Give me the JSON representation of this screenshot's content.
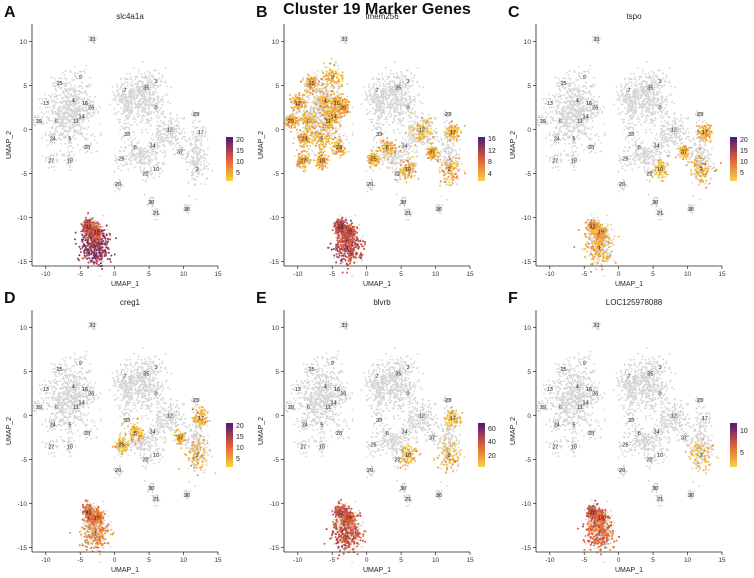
{
  "figure_title": "Cluster 19 Marker Genes",
  "colors": {
    "background_cells": "#d4d4d4",
    "low": "#f6d340",
    "mid": "#e05a3a",
    "high": "#4a1a7a"
  },
  "chart_data": [
    {
      "type": "scatter",
      "panel": "A",
      "title": "slc4a1a",
      "xlabel": "UMAP_1",
      "ylabel": "UMAP_2",
      "xlim": [
        -12,
        15
      ],
      "ylim": [
        -15.5,
        12
      ],
      "x_ticks": [
        -10,
        -5,
        0,
        5,
        10,
        15
      ],
      "y_ticks": [
        10,
        5,
        0,
        -5,
        -10,
        -15
      ],
      "legend_ticks": [
        20,
        15,
        10,
        5
      ],
      "legend_max": 22,
      "legend_min": 2,
      "expression": {
        "1": 0.75,
        "32": 0.6,
        "19": 0.55
      },
      "cluster_labels": [
        "31",
        "15",
        "9",
        "13",
        "4",
        "16",
        "26",
        "29",
        "6",
        "11",
        "14",
        "24",
        "5",
        "28",
        "27",
        "18",
        "7",
        "35",
        "3",
        "0",
        "12",
        "23",
        "33",
        "8",
        "34",
        "25",
        "22",
        "10",
        "17",
        "37",
        "2",
        "20",
        "30",
        "21",
        "36",
        "32",
        "19",
        "1"
      ]
    },
    {
      "type": "scatter",
      "panel": "B",
      "title": "tmem256",
      "xlabel": "UMAP_1",
      "ylabel": "UMAP_2",
      "xlim": [
        -12,
        15
      ],
      "ylim": [
        -15.5,
        12
      ],
      "x_ticks": [
        -10,
        -5,
        0,
        5,
        10,
        15
      ],
      "y_ticks": [
        10,
        5,
        0,
        -5,
        -10,
        -15
      ],
      "legend_ticks": [
        16,
        12,
        8,
        4
      ],
      "legend_max": 17,
      "legend_min": 2,
      "expression": {
        "1": 0.6,
        "32": 0.6,
        "19": 0.55,
        "9": 0.15,
        "15": 0.15,
        "13": 0.15,
        "4": 0.15,
        "16": 0.15,
        "26": 0.15,
        "29": 0.15,
        "6": 0.15,
        "11": 0.15,
        "14": 0.15,
        "24": 0.15,
        "5": 0.15,
        "28": 0.15,
        "27": 0.15,
        "18": 0.15,
        "25": 0.15,
        "8": 0.15,
        "10": 0.15,
        "2": 0.15,
        "17": 0.15,
        "37": 0.15,
        "12": 0.12
      },
      "cluster_labels": [
        "31",
        "15",
        "9",
        "13",
        "4",
        "16",
        "26",
        "29",
        "6",
        "11",
        "14",
        "24",
        "5",
        "28",
        "27",
        "18",
        "7",
        "35",
        "3",
        "0",
        "12",
        "23",
        "33",
        "8",
        "34",
        "25",
        "22",
        "10",
        "17",
        "37",
        "2",
        "20",
        "30",
        "21",
        "36",
        "32",
        "19",
        "1"
      ]
    },
    {
      "type": "scatter",
      "panel": "C",
      "title": "tspo",
      "xlabel": "UMAP_1",
      "ylabel": "UMAP_2",
      "xlim": [
        -12,
        15
      ],
      "ylim": [
        -15.5,
        12
      ],
      "x_ticks": [
        -10,
        -5,
        0,
        5,
        10,
        15
      ],
      "y_ticks": [
        10,
        5,
        0,
        -5,
        -10,
        -15
      ],
      "legend_ticks": [
        20,
        15,
        10,
        5
      ],
      "legend_max": 22,
      "legend_min": 2,
      "expression": {
        "1": 0.2,
        "32": 0.2,
        "19": 0.2,
        "2": 0.15,
        "17": 0.15,
        "37": 0.12,
        "10": 0.1
      },
      "cluster_labels": [
        "31",
        "15",
        "9",
        "13",
        "4",
        "16",
        "26",
        "29",
        "6",
        "11",
        "14",
        "24",
        "5",
        "28",
        "27",
        "18",
        "7",
        "35",
        "3",
        "0",
        "12",
        "23",
        "33",
        "8",
        "34",
        "25",
        "22",
        "10",
        "17",
        "37",
        "2",
        "20",
        "30",
        "21",
        "36",
        "32",
        "19",
        "1"
      ]
    },
    {
      "type": "scatter",
      "panel": "D",
      "title": "creg1",
      "xlabel": "UMAP_1",
      "ylabel": "UMAP_2",
      "xlim": [
        -12,
        15
      ],
      "ylim": [
        -15.5,
        12
      ],
      "x_ticks": [
        -10,
        -5,
        0,
        5,
        10,
        15
      ],
      "y_ticks": [
        10,
        5,
        0,
        -5,
        -10,
        -15
      ],
      "legend_ticks": [
        20,
        15,
        10,
        5
      ],
      "legend_max": 22,
      "legend_min": 2,
      "expression": {
        "1": 0.3,
        "32": 0.4,
        "19": 0.35,
        "2": 0.15,
        "17": 0.15,
        "37": 0.12,
        "25": 0.12,
        "8": 0.1
      },
      "cluster_labels": [
        "31",
        "15",
        "9",
        "13",
        "4",
        "16",
        "26",
        "29",
        "6",
        "11",
        "14",
        "24",
        "5",
        "28",
        "27",
        "18",
        "7",
        "35",
        "3",
        "0",
        "12",
        "23",
        "33",
        "8",
        "34",
        "25",
        "22",
        "10",
        "17",
        "37",
        "2",
        "20",
        "30",
        "21",
        "36",
        "32",
        "19",
        "1"
      ]
    },
    {
      "type": "scatter",
      "panel": "E",
      "title": "blvrb",
      "xlabel": "UMAP_1",
      "ylabel": "UMAP_2",
      "xlim": [
        -12,
        15
      ],
      "ylim": [
        -15.5,
        12
      ],
      "x_ticks": [
        -10,
        -5,
        0,
        5,
        10,
        15
      ],
      "y_ticks": [
        10,
        5,
        0,
        -5,
        -10,
        -15
      ],
      "legend_ticks": [
        60,
        40,
        20
      ],
      "legend_max": 70,
      "legend_min": 5,
      "expression": {
        "1": 0.55,
        "32": 0.55,
        "19": 0.5,
        "2": 0.12,
        "17": 0.12,
        "10": 0.1
      },
      "cluster_labels": [
        "31",
        "15",
        "9",
        "13",
        "4",
        "16",
        "26",
        "29",
        "6",
        "11",
        "14",
        "24",
        "5",
        "28",
        "27",
        "18",
        "7",
        "35",
        "3",
        "0",
        "12",
        "23",
        "33",
        "8",
        "34",
        "25",
        "22",
        "10",
        "17",
        "37",
        "2",
        "20",
        "30",
        "21",
        "36",
        "32",
        "19",
        "1"
      ]
    },
    {
      "type": "scatter",
      "panel": "F",
      "title": "LOC125978088",
      "xlabel": "UMAP_1",
      "ylabel": "UMAP_2",
      "xlim": [
        -12,
        15
      ],
      "ylim": [
        -15.5,
        12
      ],
      "x_ticks": [
        -10,
        -5,
        0,
        5,
        10,
        15
      ],
      "y_ticks": [
        10,
        5,
        0,
        -5,
        -10,
        -15
      ],
      "legend_ticks": [
        10,
        5
      ],
      "legend_max": 12,
      "legend_min": 2,
      "expression": {
        "1": 0.45,
        "32": 0.5,
        "19": 0.45,
        "2": 0.08
      },
      "cluster_labels": [
        "31",
        "15",
        "9",
        "13",
        "4",
        "16",
        "26",
        "29",
        "6",
        "11",
        "14",
        "24",
        "5",
        "28",
        "27",
        "18",
        "7",
        "35",
        "3",
        "0",
        "12",
        "23",
        "33",
        "8",
        "34",
        "25",
        "22",
        "10",
        "17",
        "37",
        "2",
        "20",
        "30",
        "21",
        "36",
        "32",
        "19",
        "1"
      ]
    }
  ]
}
